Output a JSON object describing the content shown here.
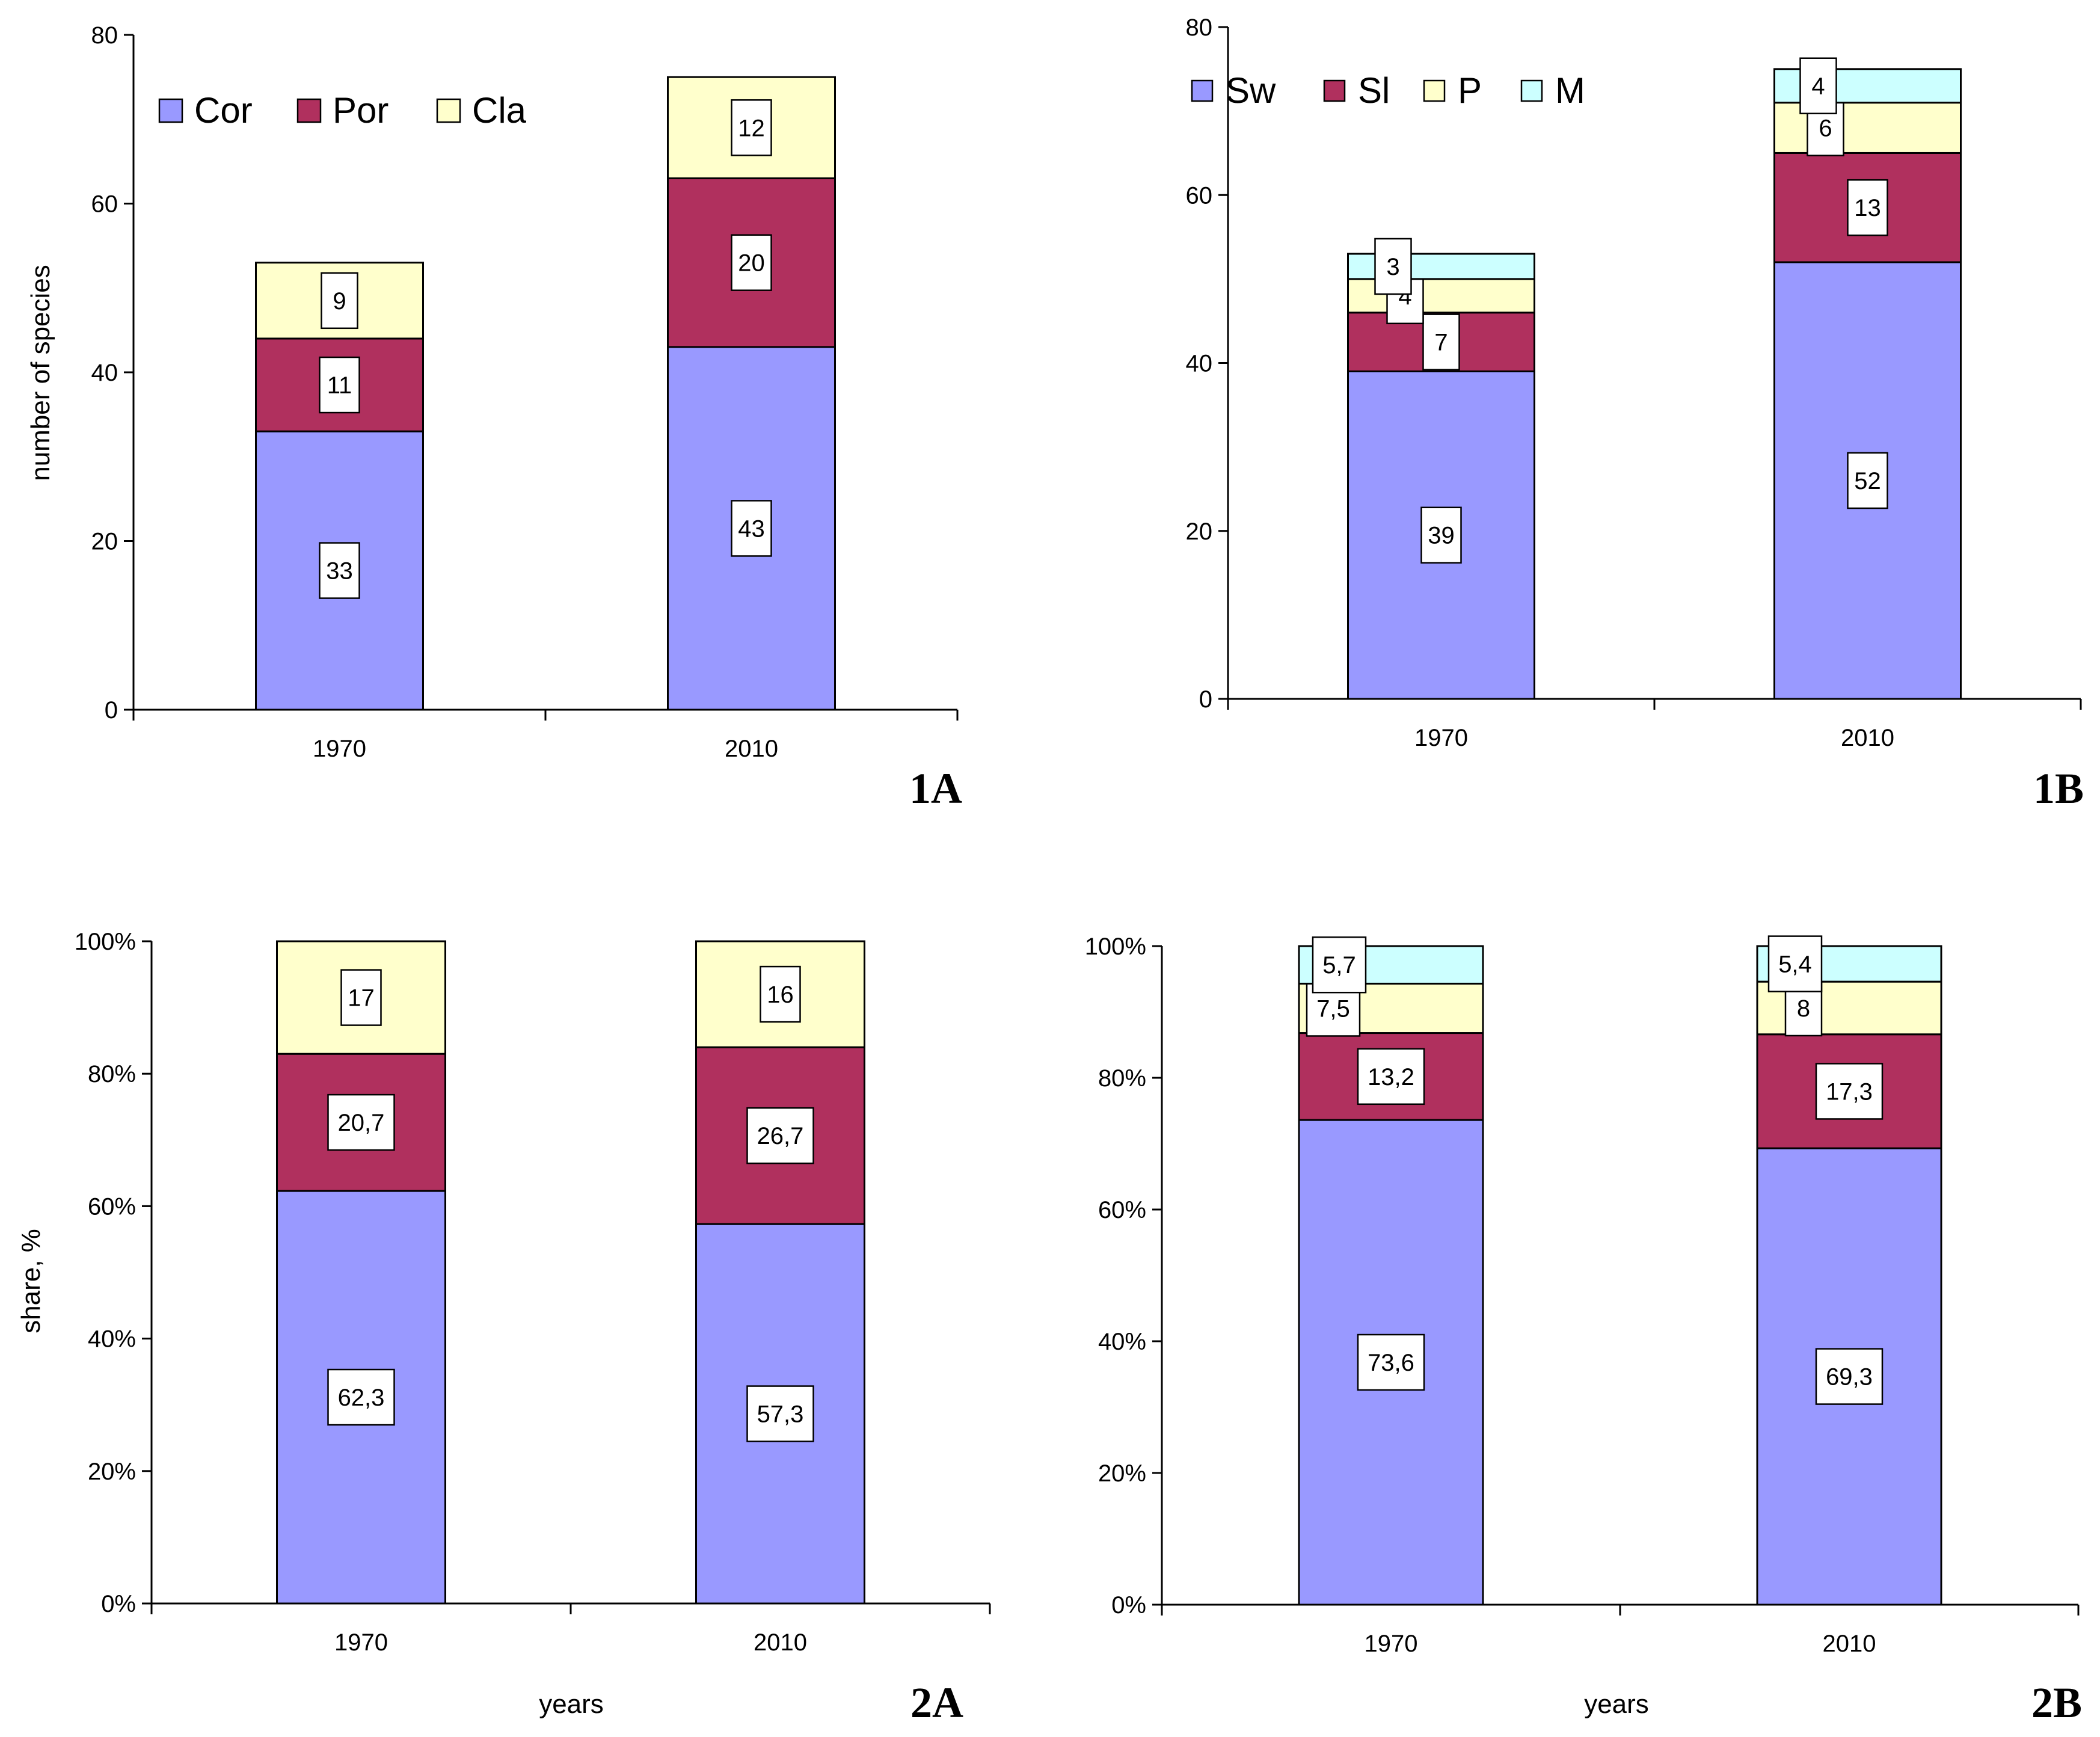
{
  "colors": {
    "Cor": "#9999FF",
    "Por": "#B0305E",
    "Cla": "#FFFFCC",
    "Sw": "#9999FF",
    "Sl": "#B0305E",
    "P": "#FFFFCC",
    "M": "#CCFFFF",
    "axis": "#000000",
    "label_bg": "#FFFFFF"
  },
  "chart_data": [
    {
      "id": "1A",
      "panel_label": "1A",
      "type": "bar",
      "stacked": true,
      "categories": [
        "1970",
        "2010"
      ],
      "series": [
        {
          "name": "Cor",
          "values": [
            33,
            43
          ],
          "labels": [
            "33",
            "43"
          ]
        },
        {
          "name": "Por",
          "values": [
            11,
            20
          ],
          "labels": [
            "11",
            "20"
          ]
        },
        {
          "name": "Cla",
          "values": [
            9,
            12
          ],
          "labels": [
            "9",
            "12"
          ]
        }
      ],
      "ylim": [
        0,
        80
      ],
      "yticks": [
        0,
        20,
        40,
        60,
        80
      ],
      "ytick_labels": [
        "0",
        "20",
        "40",
        "60",
        "80"
      ],
      "ylabel": "number of species",
      "xlabel": "",
      "legend": "top-left"
    },
    {
      "id": "1B",
      "panel_label": "1B",
      "type": "bar",
      "stacked": true,
      "categories": [
        "1970",
        "2010"
      ],
      "series": [
        {
          "name": "Sw",
          "values": [
            39,
            52
          ],
          "labels": [
            "39",
            "52"
          ]
        },
        {
          "name": "Sl",
          "values": [
            7,
            13
          ],
          "labels": [
            "7",
            "13"
          ]
        },
        {
          "name": "P",
          "values": [
            4,
            6
          ],
          "labels": [
            "4",
            "6"
          ]
        },
        {
          "name": "M",
          "values": [
            3,
            4
          ],
          "labels": [
            "3",
            "4"
          ]
        }
      ],
      "ylim": [
        0,
        80
      ],
      "yticks": [
        0,
        20,
        40,
        60,
        80
      ],
      "ytick_labels": [
        "0",
        "20",
        "40",
        "60",
        "80"
      ],
      "ylabel": "",
      "xlabel": "",
      "legend": "top-left"
    },
    {
      "id": "2A",
      "panel_label": "2A",
      "type": "bar",
      "stacked": true,
      "categories": [
        "1970",
        "2010"
      ],
      "series": [
        {
          "name": "Cor",
          "values": [
            62.3,
            57.3
          ],
          "labels": [
            "62,3",
            "57,3"
          ]
        },
        {
          "name": "Por",
          "values": [
            20.7,
            26.7
          ],
          "labels": [
            "20,7",
            "26,7"
          ]
        },
        {
          "name": "Cla",
          "values": [
            17,
            16
          ],
          "labels": [
            "17",
            "16"
          ]
        }
      ],
      "ylim": [
        0,
        100
      ],
      "yticks": [
        0,
        20,
        40,
        60,
        80,
        100
      ],
      "ytick_labels": [
        "0%",
        "20%",
        "40%",
        "60%",
        "80%",
        "100%"
      ],
      "ylabel": "share, %",
      "xlabel": "years",
      "legend": "none"
    },
    {
      "id": "2B",
      "panel_label": "2B",
      "type": "bar",
      "stacked": true,
      "categories": [
        "1970",
        "2010"
      ],
      "series": [
        {
          "name": "Sw",
          "values": [
            73.6,
            69.3
          ],
          "labels": [
            "73,6",
            "69,3"
          ]
        },
        {
          "name": "Sl",
          "values": [
            13.2,
            17.3
          ],
          "labels": [
            "13,2",
            "17,3"
          ]
        },
        {
          "name": "P",
          "values": [
            7.5,
            8
          ],
          "labels": [
            "7,5",
            "8"
          ]
        },
        {
          "name": "M",
          "values": [
            5.7,
            5.4
          ],
          "labels": [
            "5,7",
            "5,4"
          ]
        }
      ],
      "ylim": [
        0,
        100
      ],
      "yticks": [
        0,
        20,
        40,
        60,
        80,
        100
      ],
      "ytick_labels": [
        "0%",
        "20%",
        "40%",
        "60%",
        "80%",
        "100%"
      ],
      "ylabel": "",
      "xlabel": "years",
      "legend": "none"
    }
  ]
}
